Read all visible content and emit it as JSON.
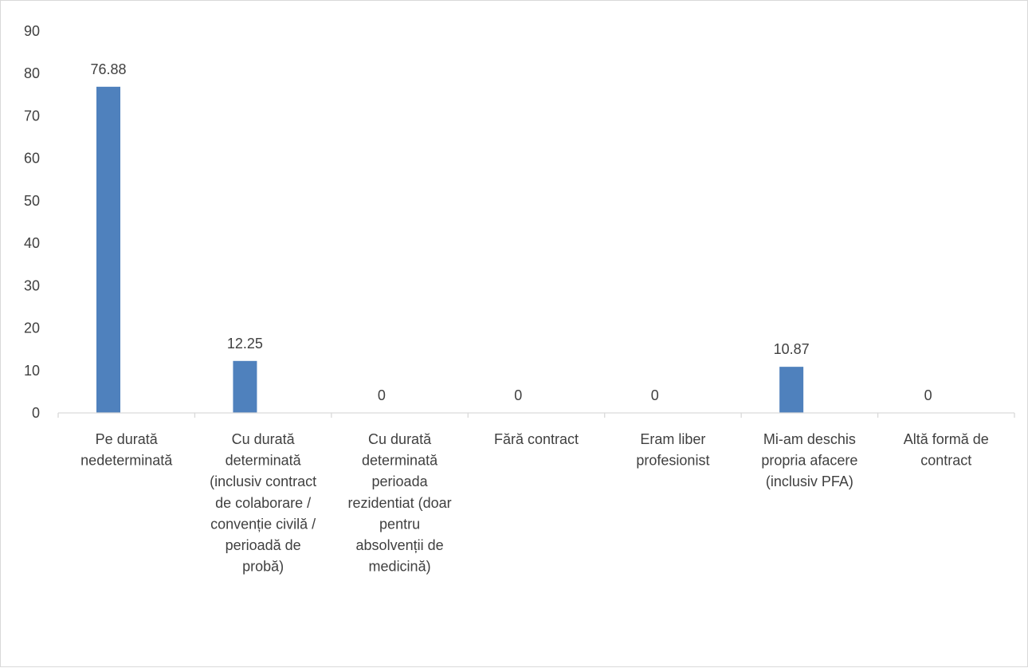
{
  "chart_data": {
    "type": "bar",
    "title": "",
    "xlabel": "",
    "ylabel": "",
    "ylim": [
      0,
      90
    ],
    "yticks": [
      0,
      10,
      20,
      30,
      40,
      50,
      60,
      70,
      80,
      90
    ],
    "grid": false,
    "legend": "none",
    "bar_color": "#4f81bd",
    "categories": [
      [
        "Pe durată",
        "nedeterminată"
      ],
      [
        "Cu durată",
        "determinată",
        "(inclusiv contract",
        "de colaborare /",
        "convenție civilă /",
        "perioadă de",
        "probă)"
      ],
      [
        "Cu durată",
        "determinată",
        "perioada",
        "rezidentiat (doar",
        "pentru",
        "absolvenții de",
        "medicină)"
      ],
      [
        "Fără contract"
      ],
      [
        "Eram liber",
        "profesionist"
      ],
      [
        "Mi-am deschis",
        "propria afacere",
        "(inclusiv PFA)"
      ],
      [
        "Altă formă de",
        "contract"
      ]
    ],
    "values": [
      76.88,
      12.25,
      0,
      0,
      0,
      10.87,
      0
    ],
    "data_labels": [
      "76.88",
      "12.25",
      "0",
      "0",
      "0",
      "10.87",
      "0"
    ]
  }
}
